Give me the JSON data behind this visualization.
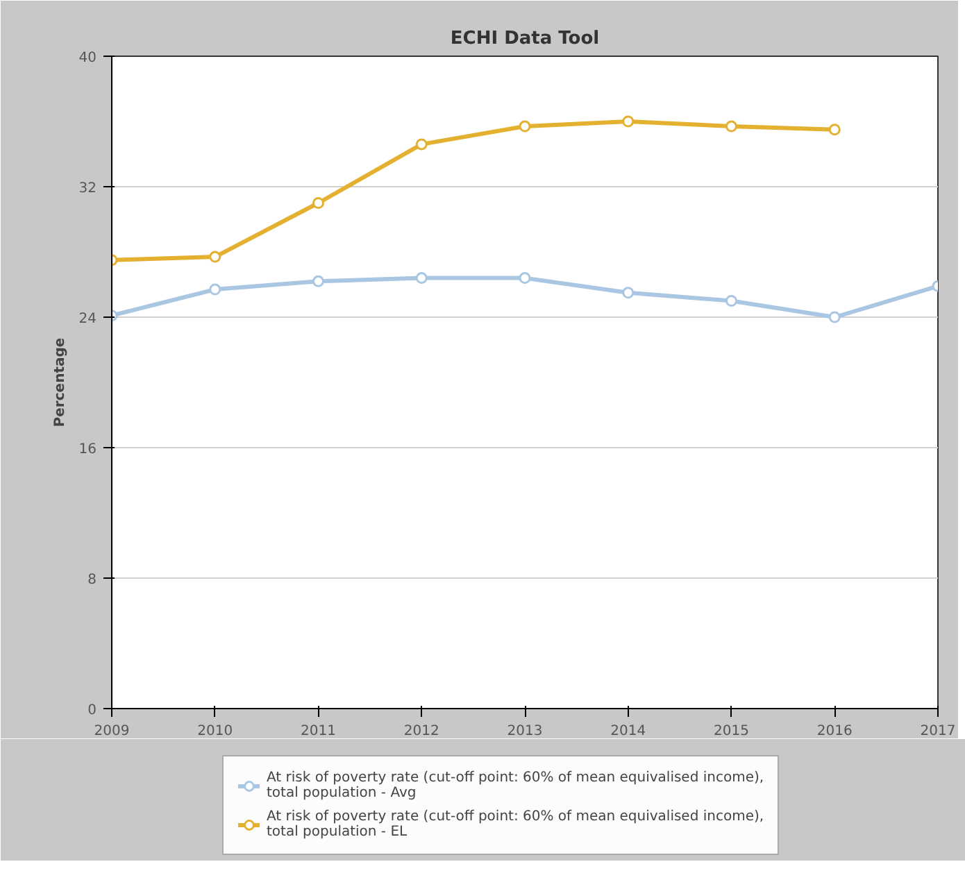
{
  "chart_data": {
    "type": "line",
    "title": "ECHI Data Tool",
    "ylabel": "Percentage",
    "x": [
      2009,
      2010,
      2011,
      2012,
      2013,
      2014,
      2015,
      2016,
      2017
    ],
    "xlim": [
      2009,
      2017
    ],
    "xticks": [
      2009,
      2010,
      2011,
      2012,
      2013,
      2014,
      2015,
      2016,
      2017
    ],
    "ylim": [
      0,
      40
    ],
    "yticks": [
      0,
      8,
      16,
      24,
      32,
      40
    ],
    "grid": "y",
    "legend": "bottom",
    "marker": "circle",
    "line_style": "solid",
    "series": [
      {
        "name": "At risk of poverty rate (cut-off point: 60% of mean equivalised income), total population - Avg",
        "color": "#a9c6e2",
        "values": [
          24.1,
          25.7,
          26.2,
          26.4,
          26.4,
          25.5,
          25.0,
          24.0,
          25.9
        ]
      },
      {
        "name": "At risk of poverty rate (cut-off point: 60% of mean equivalised income), total population - EL",
        "color": "#e4b030",
        "values": [
          27.5,
          27.7,
          31.0,
          34.6,
          35.7,
          36.0,
          35.7,
          35.5,
          null
        ]
      }
    ]
  }
}
